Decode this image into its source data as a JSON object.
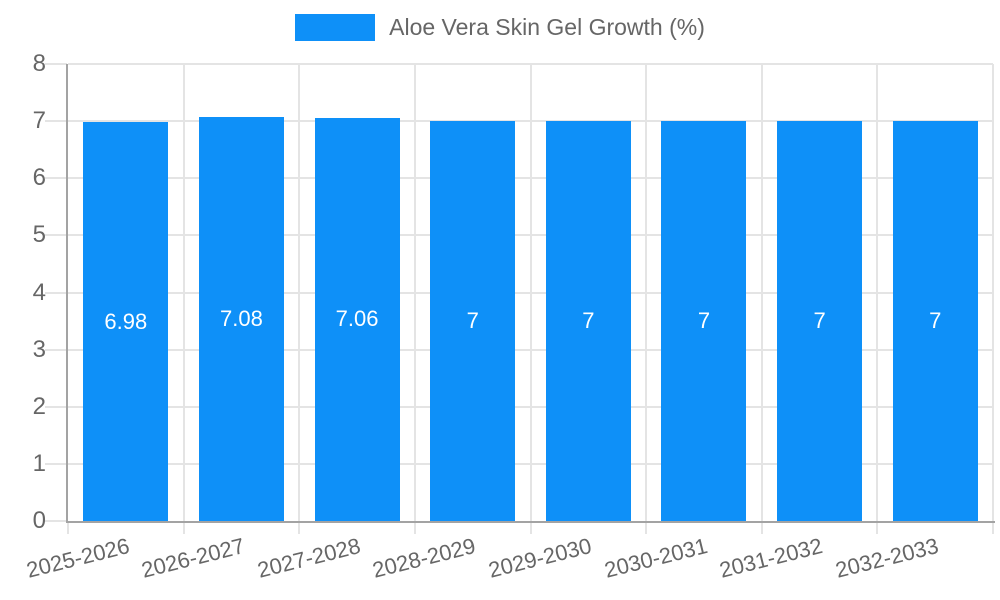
{
  "legend": {
    "label": "Aloe Vera Skin Gel Growth (%)"
  },
  "colors": {
    "bar": "#0e90f8",
    "grid": "#e4e4e4",
    "axis": "#a3a3a3",
    "axis_label": "#666666",
    "value_label": "#ffffff",
    "legend_text": "#666666",
    "background": "#ffffff"
  },
  "chart_data": {
    "type": "bar",
    "title": "Aloe Vera Skin Gel Growth (%)",
    "categories": [
      "2025-2026",
      "2026-2027",
      "2027-2028",
      "2028-2029",
      "2029-2030",
      "2030-2031",
      "2031-2032",
      "2032-2033"
    ],
    "values": [
      6.98,
      7.08,
      7.06,
      7,
      7,
      7,
      7,
      7
    ],
    "value_labels": [
      "6.98",
      "7.08",
      "7.06",
      "7",
      "7",
      "7",
      "7",
      "7"
    ],
    "xlabel": "",
    "ylabel": "",
    "ylim": [
      0,
      8
    ],
    "yticks": [
      0,
      1,
      2,
      3,
      4,
      5,
      6,
      7,
      8
    ],
    "grid": true,
    "legend_position": "top",
    "x_label_rotation_deg": -14,
    "value_label_position": "center-inside",
    "series": [
      {
        "name": "Aloe Vera Skin Gel Growth (%)",
        "color": "#0e90f8"
      }
    ]
  }
}
